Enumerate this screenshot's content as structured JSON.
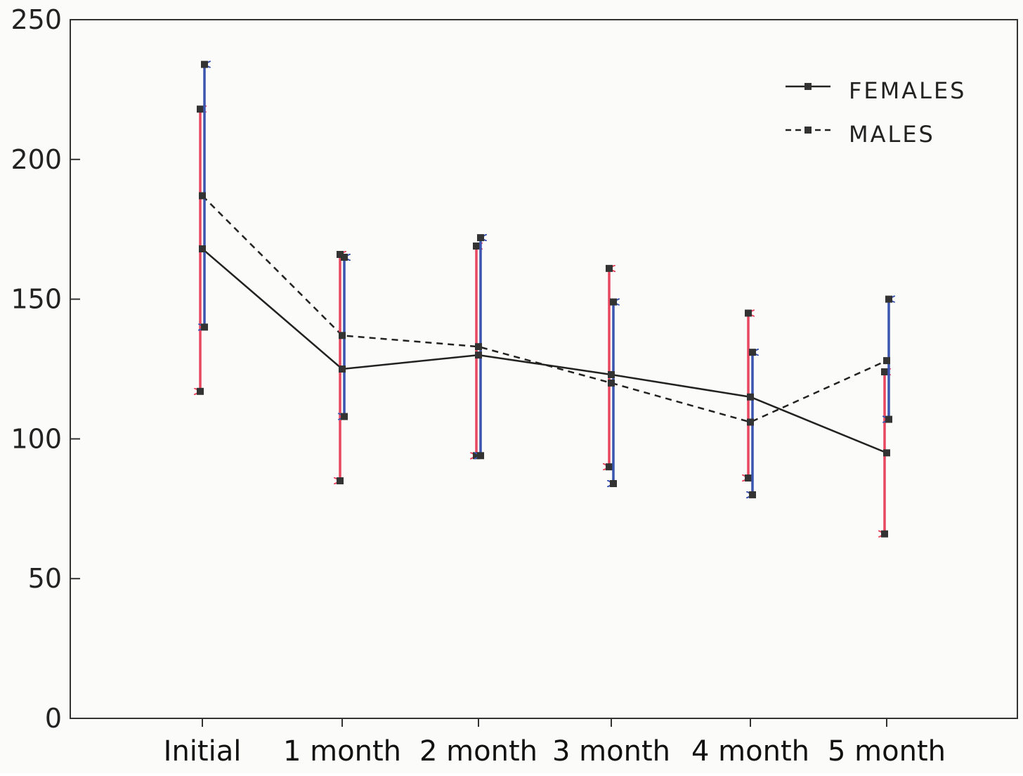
{
  "chart_data": {
    "type": "line",
    "title": "",
    "xlabel": "",
    "ylabel": "",
    "ylim": [
      0,
      250
    ],
    "yticks": [
      "0",
      "50",
      "100",
      "150",
      "200",
      "250"
    ],
    "categories": [
      "Initial",
      "1 month",
      "2 month",
      "3 month",
      "4 month",
      "5 month"
    ],
    "legend": {
      "position": "top-right",
      "entries": [
        "FEMALES",
        "MALES"
      ]
    },
    "series": [
      {
        "name": "FEMALES",
        "line_style": "solid",
        "values": [
          168,
          125,
          130,
          123,
          115,
          95
        ],
        "error_upper": [
          218,
          166,
          169,
          161,
          145,
          124
        ],
        "error_lower": [
          117,
          85,
          94,
          90,
          86,
          66
        ],
        "error_color": "#e8475f"
      },
      {
        "name": "MALES",
        "line_style": "dashed",
        "values": [
          187,
          137,
          133,
          120,
          106,
          128
        ],
        "error_upper": [
          234,
          165,
          172,
          149,
          131,
          150
        ],
        "error_lower": [
          140,
          108,
          94,
          84,
          80,
          107
        ],
        "error_color": "#3b54b0"
      }
    ],
    "colors": {
      "line": "#222222",
      "axis": "#333333",
      "females_error": "#e8475f",
      "males_error": "#3b54b0"
    }
  }
}
